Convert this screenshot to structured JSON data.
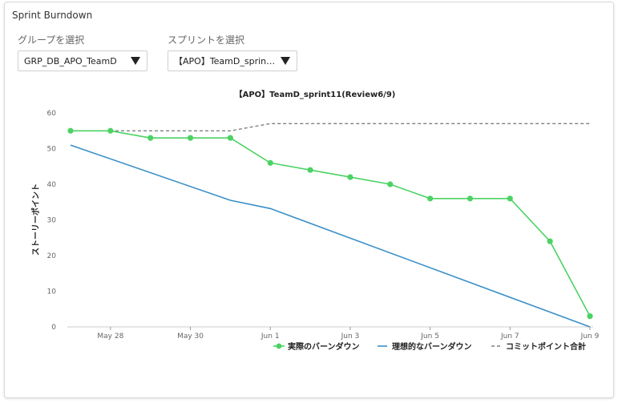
{
  "card": {
    "title": "Sprint Burndown"
  },
  "filters": {
    "group_label": "グループを選択",
    "group_value": "GRP_DB_APO_TeamD",
    "sprint_label": "スプリントを選択",
    "sprint_value": "【APO】TeamD_sprint1..."
  },
  "colors": {
    "actual": "#4cd264",
    "ideal": "#3a8fc8",
    "commit": "#808080"
  },
  "chart_data": {
    "type": "line",
    "title": "【APO】TeamD_sprint11(Review6/9)",
    "ylabel": "ストーリーポイント",
    "xlabel": "",
    "ylim": [
      0,
      60
    ],
    "yticks": [
      0,
      10,
      20,
      30,
      40,
      50,
      60
    ],
    "x_dates": [
      "May 27",
      "May 28",
      "May 29",
      "May 30",
      "May 31",
      "Jun 1",
      "Jun 2",
      "Jun 3",
      "Jun 4",
      "Jun 5",
      "Jun 6",
      "Jun 7",
      "Jun 8",
      "Jun 9"
    ],
    "x_tick_labels": [
      "May 28",
      "May 30",
      "Jun 1",
      "Jun 3",
      "Jun 5",
      "Jun 7",
      "Jun 9"
    ],
    "legend_position": "bottom-right",
    "grid": false,
    "series": [
      {
        "name": "実際のバーンダウン",
        "style": "line-markers",
        "color": "#4cd264",
        "points": [
          [
            "May 27",
            55
          ],
          [
            "May 28",
            55
          ],
          [
            "May 29",
            53
          ],
          [
            "May 30",
            53
          ],
          [
            "May 31",
            53
          ],
          [
            "Jun 1",
            46
          ],
          [
            "Jun 2",
            44
          ],
          [
            "Jun 3",
            42
          ],
          [
            "Jun 4",
            40
          ],
          [
            "Jun 5",
            36
          ],
          [
            "Jun 6",
            36
          ],
          [
            "Jun 7",
            36
          ],
          [
            "Jun 8",
            24
          ],
          [
            "Jun 9",
            3
          ]
        ]
      },
      {
        "name": "理想的なバーンダウン",
        "style": "line",
        "color": "#3a8fc8",
        "points": [
          [
            "May 27",
            51
          ],
          [
            "May 31",
            35.5
          ],
          [
            "Jun 1",
            33.2
          ],
          [
            "Jun 9",
            0
          ]
        ]
      },
      {
        "name": "コミットポイント合計",
        "style": "dashed",
        "color": "#808080",
        "points": [
          [
            "May 27",
            55
          ],
          [
            "May 31",
            55
          ],
          [
            "Jun 1",
            57
          ],
          [
            "Jun 9",
            57
          ]
        ]
      }
    ]
  }
}
